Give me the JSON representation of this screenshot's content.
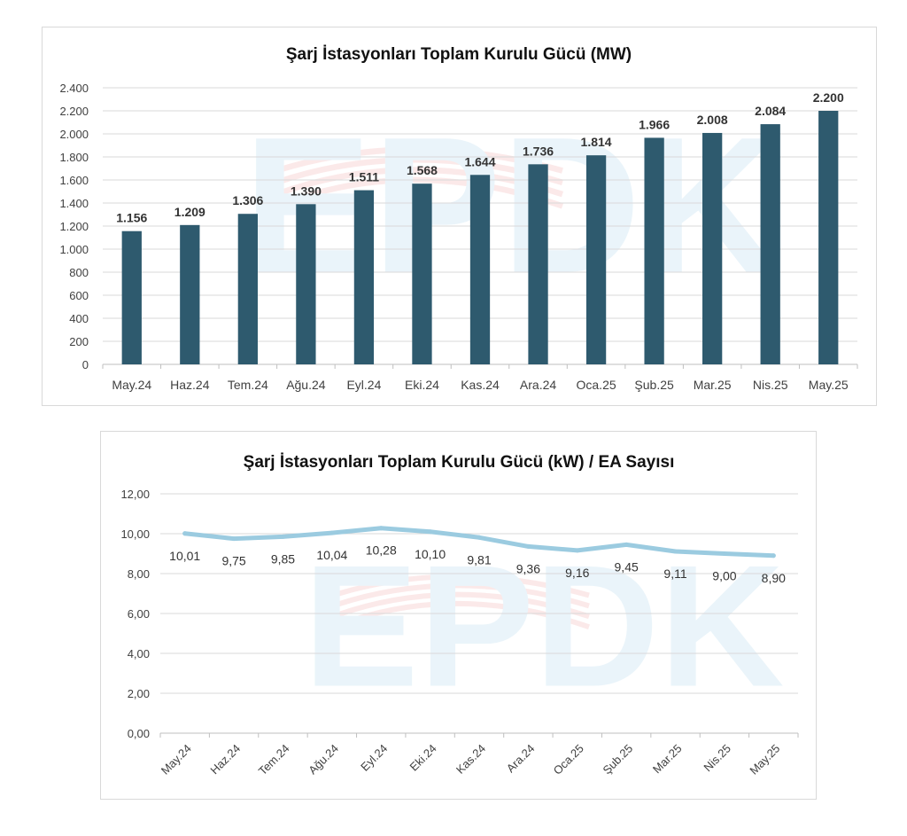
{
  "watermark": {
    "text": "EPDK",
    "colors": [
      "#3da0d0",
      "#e03030"
    ]
  },
  "colors": {
    "bar": "#2e5a6e",
    "line": "#9bcbe0",
    "grid": "#d9d9d9",
    "axis": "#bfbfbf"
  },
  "chart_data": [
    {
      "type": "bar",
      "title": "Şarj İstasyonları Toplam Kurulu Gücü (MW)",
      "categories": [
        "May.24",
        "Haz.24",
        "Tem.24",
        "Ağu.24",
        "Eyl.24",
        "Eki.24",
        "Kas.24",
        "Ara.24",
        "Oca.25",
        "Şub.25",
        "Mar.25",
        "Nis.25",
        "May.25"
      ],
      "values": [
        1156,
        1209,
        1306,
        1390,
        1511,
        1568,
        1644,
        1736,
        1814,
        1966,
        2008,
        2084,
        2200
      ],
      "data_labels": [
        "1.156",
        "1.209",
        "1.306",
        "1.390",
        "1.511",
        "1.568",
        "1.644",
        "1.736",
        "1.814",
        "1.966",
        "2.008",
        "2.084",
        "2.200"
      ],
      "yticks": [
        0,
        200,
        400,
        600,
        800,
        1000,
        1200,
        1400,
        1600,
        1800,
        2000,
        2200,
        2400
      ],
      "ytick_labels": [
        "0",
        "200",
        "400",
        "600",
        "800",
        "1.000",
        "1.200",
        "1.400",
        "1.600",
        "1.800",
        "2.000",
        "2.200",
        "2.400"
      ],
      "ylim": [
        0,
        2400
      ],
      "grid": true
    },
    {
      "type": "line",
      "title": "Şarj İstasyonları Toplam Kurulu Gücü (kW) / EA Sayısı",
      "categories": [
        "May.24",
        "Haz.24",
        "Tem.24",
        "Ağu.24",
        "Eyl.24",
        "Eki.24",
        "Kas.24",
        "Ara.24",
        "Oca.25",
        "Şub.25",
        "Mar.25",
        "Nis.25",
        "May.25"
      ],
      "values": [
        10.01,
        9.75,
        9.85,
        10.04,
        10.28,
        10.1,
        9.81,
        9.36,
        9.16,
        9.45,
        9.11,
        9.0,
        8.9
      ],
      "data_labels": [
        "10,01",
        "9,75",
        "9,85",
        "10,04",
        "10,28",
        "10,10",
        "9,81",
        "9,36",
        "9,16",
        "9,45",
        "9,11",
        "9,00",
        "8,90"
      ],
      "yticks": [
        0,
        2,
        4,
        6,
        8,
        10,
        12
      ],
      "ytick_labels": [
        "0,00",
        "2,00",
        "4,00",
        "6,00",
        "8,00",
        "10,00",
        "12,00"
      ],
      "ylim": [
        0,
        12
      ],
      "grid": true
    }
  ]
}
